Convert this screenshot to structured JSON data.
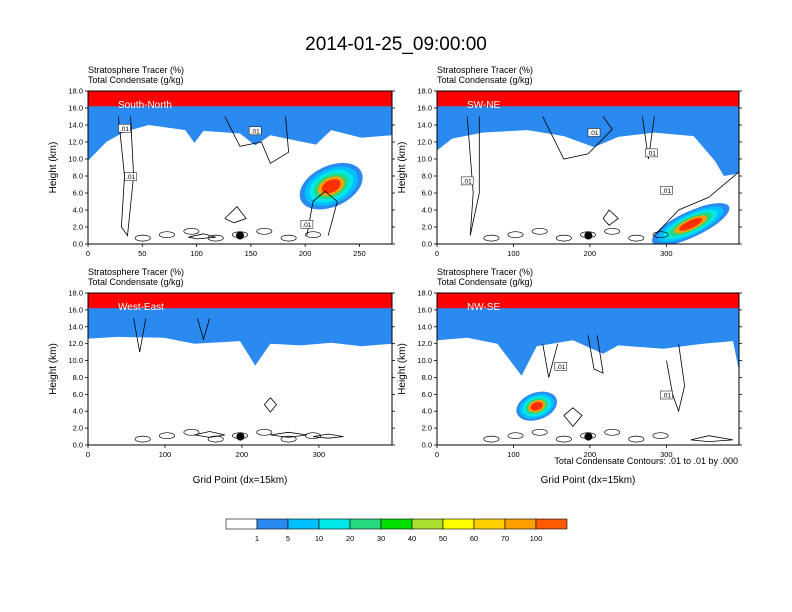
{
  "figure_title": "2014-01-25_09:00:00",
  "footnote": "Total Condensate Contours: .01 to .01 by .000",
  "colorbar": {
    "labels": [
      "1",
      "5",
      "10",
      "20",
      "30",
      "40",
      "50",
      "60",
      "70",
      "100"
    ],
    "colors": [
      "#ffffff",
      "#2a8af0",
      "#00bfff",
      "#00e8e8",
      "#26d97f",
      "#00e000",
      "#a8e030",
      "#ffff00",
      "#ffd000",
      "#ffa000",
      "#ff5a00",
      "#ff0000"
    ]
  },
  "chart_data": [
    {
      "type": "heatmap",
      "subtitle_line1": "Stratosphere Tracer   (%)",
      "subtitle_line2": "Total Condensate   (g/kg)",
      "cross_section_label": "South-North",
      "ylabel": "Height (km)",
      "xlabel": "",
      "x_ticks": [
        "0",
        "50",
        "100",
        "150",
        "200",
        "250"
      ],
      "y_ticks": [
        "0.0",
        "2.0",
        "4.0",
        "6.0",
        "8.0",
        "10.0",
        "12.0",
        "14.0",
        "16.0",
        "18.0"
      ],
      "xlim": [
        0,
        280
      ],
      "ylim": [
        0,
        18
      ],
      "contour_labels": [
        ".01",
        ".01",
        ".01",
        ".01"
      ],
      "marker_point": [
        140,
        1.0
      ]
    },
    {
      "type": "heatmap",
      "subtitle_line1": "Stratosphere Tracer   (%)",
      "subtitle_line2": "Total Condensate   (g/kg)",
      "cross_section_label": "SW-NE",
      "ylabel": "Height (km)",
      "xlabel": "",
      "x_ticks": [
        "0",
        "100",
        "200",
        "300"
      ],
      "y_ticks": [
        "0.0",
        "2.0",
        "4.0",
        "6.0",
        "8.0",
        "10.0",
        "12.0",
        "14.0",
        "16.0",
        "18.0"
      ],
      "xlim": [
        0,
        395
      ],
      "ylim": [
        0,
        18
      ],
      "contour_labels": [
        ".01",
        ".01",
        ".01",
        ".01"
      ],
      "marker_point": [
        198,
        1.0
      ]
    },
    {
      "type": "heatmap",
      "subtitle_line1": "Stratosphere Tracer   (%)",
      "subtitle_line2": "Total Condensate   (g/kg)",
      "cross_section_label": "West-East",
      "ylabel": "Height (km)",
      "xlabel": "Grid Point (dx=15km)",
      "x_ticks": [
        "0",
        "100",
        "200",
        "300"
      ],
      "y_ticks": [
        "0.0",
        "2.0",
        "4.0",
        "6.0",
        "8.0",
        "10.0",
        "12.0",
        "14.0",
        "16.0",
        "18.0"
      ],
      "xlim": [
        0,
        395
      ],
      "ylim": [
        0,
        18
      ],
      "contour_labels": [],
      "marker_point": [
        198,
        1.0
      ]
    },
    {
      "type": "heatmap",
      "subtitle_line1": "Stratosphere Tracer   (%)",
      "subtitle_line2": "Total Condensate   (g/kg)",
      "cross_section_label": "NW-SE",
      "ylabel": "Height (km)",
      "xlabel": "Grid Point (dx=15km)",
      "x_ticks": [
        "0",
        "100",
        "200",
        "300"
      ],
      "y_ticks": [
        "0.0",
        "2.0",
        "4.0",
        "6.0",
        "8.0",
        "10.0",
        "12.0",
        "14.0",
        "16.0",
        "18.0"
      ],
      "xlim": [
        0,
        395
      ],
      "ylim": [
        0,
        18
      ],
      "contour_labels": [
        ".01",
        ".01"
      ],
      "marker_point": [
        198,
        1.0
      ]
    }
  ]
}
